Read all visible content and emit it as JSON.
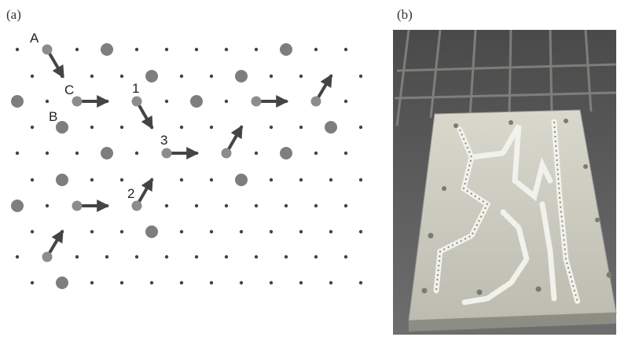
{
  "panels": [
    {
      "label": "(a)",
      "annotations": [
        "A",
        "B",
        "C",
        "1",
        "2",
        "3"
      ]
    },
    {
      "label": "(b)"
    }
  ]
}
